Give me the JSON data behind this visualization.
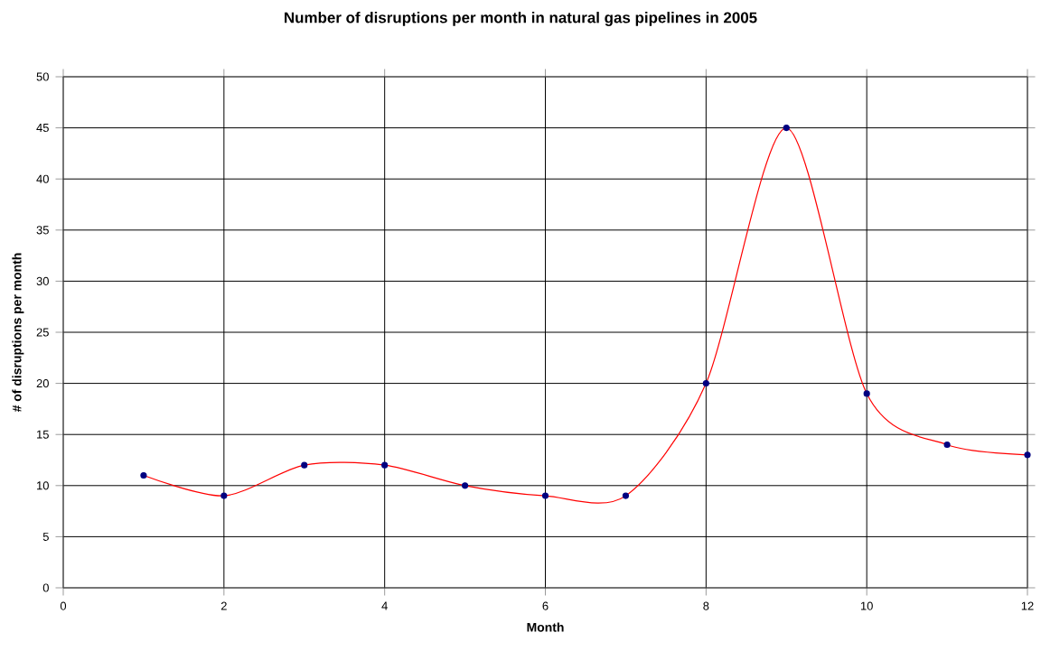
{
  "chart_data": {
    "type": "line",
    "title": "Number of disruptions per month in natural gas pipelines in 2005",
    "xlabel": "Month",
    "ylabel": "# of disruptions per month",
    "x": [
      1,
      2,
      3,
      4,
      5,
      6,
      7,
      8,
      9,
      10,
      11,
      12
    ],
    "series": [
      {
        "color": "#ff0000",
        "values": [
          11,
          9,
          12,
          12,
          10,
          9,
          9,
          20,
          45,
          19,
          14,
          13
        ]
      }
    ],
    "xlim": [
      0,
      12
    ],
    "xticks": [
      0,
      2,
      4,
      6,
      8,
      10,
      12
    ],
    "ylim": [
      0,
      50
    ],
    "yticks": [
      0,
      5,
      10,
      15,
      20,
      25,
      30,
      35,
      40,
      45,
      50
    ],
    "grid": true,
    "marker": "circle",
    "line_style": "solid"
  }
}
